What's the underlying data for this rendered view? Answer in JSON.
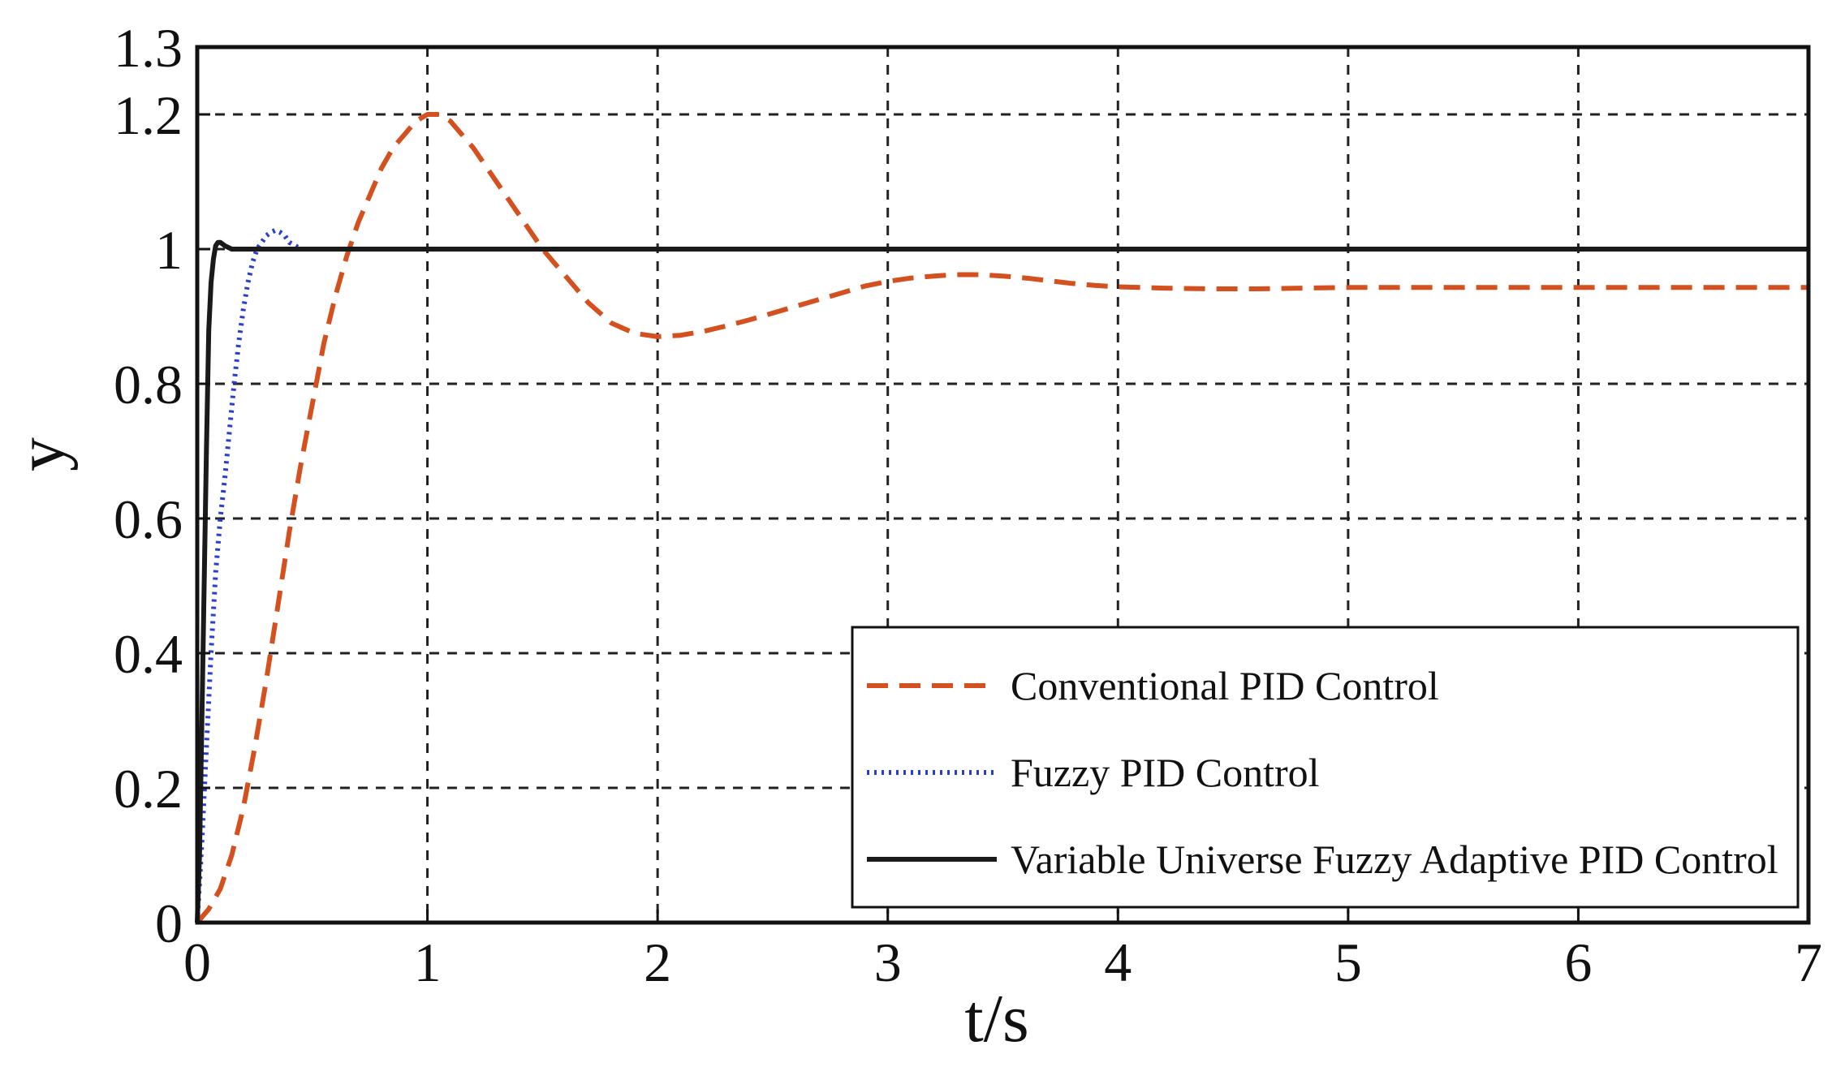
{
  "chart_data": {
    "type": "line",
    "xlabel": "t/s",
    "ylabel": "y",
    "xlim": [
      0,
      7
    ],
    "ylim": [
      0,
      1.3
    ],
    "xticks": [
      0,
      1,
      2,
      3,
      4,
      5,
      6,
      7
    ],
    "xtick_labels": [
      "0",
      "1",
      "2",
      "3",
      "4",
      "5",
      "6",
      "7"
    ],
    "yticks": [
      0,
      0.2,
      0.4,
      0.6,
      0.8,
      1.0,
      1.2,
      1.3
    ],
    "ytick_labels": [
      "0",
      "0.2",
      "0.4",
      "0.6",
      "0.8",
      "1",
      "1.2",
      "1.3"
    ],
    "grid": true,
    "grid_style": "dashed",
    "legend_position": "bottom-right",
    "series": [
      {
        "name": "Conventional PID Control",
        "color": "#d4501e",
        "style": "dashed",
        "x": [
          0,
          0.05,
          0.1,
          0.15,
          0.2,
          0.25,
          0.3,
          0.35,
          0.4,
          0.45,
          0.5,
          0.55,
          0.6,
          0.65,
          0.7,
          0.75,
          0.8,
          0.85,
          0.9,
          0.95,
          1.0,
          1.05,
          1.1,
          1.15,
          1.2,
          1.3,
          1.4,
          1.5,
          1.6,
          1.7,
          1.8,
          1.9,
          2.0,
          2.1,
          2.2,
          2.3,
          2.4,
          2.5,
          2.6,
          2.7,
          2.8,
          2.9,
          3.0,
          3.1,
          3.2,
          3.3,
          3.4,
          3.5,
          3.6,
          3.7,
          3.8,
          3.9,
          4.0,
          4.2,
          4.4,
          4.6,
          4.8,
          5.0,
          5.5,
          6.0,
          6.5,
          7.0
        ],
        "y": [
          0,
          0.02,
          0.05,
          0.1,
          0.17,
          0.26,
          0.36,
          0.47,
          0.58,
          0.68,
          0.77,
          0.86,
          0.93,
          0.99,
          1.04,
          1.08,
          1.12,
          1.15,
          1.17,
          1.19,
          1.2,
          1.2,
          1.19,
          1.17,
          1.15,
          1.1,
          1.05,
          1.0,
          0.96,
          0.92,
          0.89,
          0.875,
          0.87,
          0.872,
          0.878,
          0.886,
          0.895,
          0.905,
          0.915,
          0.925,
          0.935,
          0.945,
          0.952,
          0.957,
          0.96,
          0.962,
          0.962,
          0.96,
          0.957,
          0.953,
          0.949,
          0.946,
          0.944,
          0.942,
          0.941,
          0.941,
          0.942,
          0.943,
          0.943,
          0.943,
          0.943,
          0.943
        ]
      },
      {
        "name": "Fuzzy PID Control",
        "color": "#2a3fd0",
        "style": "dotted",
        "x": [
          0,
          0.02,
          0.04,
          0.06,
          0.08,
          0.1,
          0.12,
          0.14,
          0.16,
          0.18,
          0.2,
          0.22,
          0.24,
          0.26,
          0.28,
          0.3,
          0.32,
          0.34,
          0.36,
          0.38,
          0.4,
          0.45,
          0.5,
          0.55,
          0.6,
          0.7,
          0.8,
          0.9,
          1.0,
          1.5,
          2.0,
          3.0,
          4.0,
          4.3
        ],
        "y": [
          0,
          0.12,
          0.26,
          0.4,
          0.52,
          0.6,
          0.66,
          0.73,
          0.8,
          0.86,
          0.91,
          0.95,
          0.98,
          1.0,
          1.01,
          1.02,
          1.025,
          1.028,
          1.025,
          1.02,
          1.01,
          1.0,
          1.0,
          1.0,
          1.0,
          1.0,
          1.0,
          1.0,
          1.0,
          1.0,
          1.0,
          1.0,
          1.0,
          1.0
        ]
      },
      {
        "name": "Variable Universe Fuzzy Adaptive PID Control",
        "color": "#1a1a1a",
        "style": "solid",
        "x": [
          0,
          0.01,
          0.02,
          0.03,
          0.04,
          0.05,
          0.06,
          0.07,
          0.08,
          0.09,
          0.1,
          0.12,
          0.15,
          0.2,
          0.5,
          1.0,
          2.0,
          3.0,
          4.0,
          5.0,
          6.0,
          7.0
        ],
        "y": [
          0,
          0.1,
          0.3,
          0.5,
          0.7,
          0.88,
          0.95,
          0.985,
          1.005,
          1.01,
          1.01,
          1.005,
          1.0,
          1.0,
          1.0,
          1.0,
          1.0,
          1.0,
          1.0,
          1.0,
          1.0,
          1.0
        ]
      }
    ]
  }
}
